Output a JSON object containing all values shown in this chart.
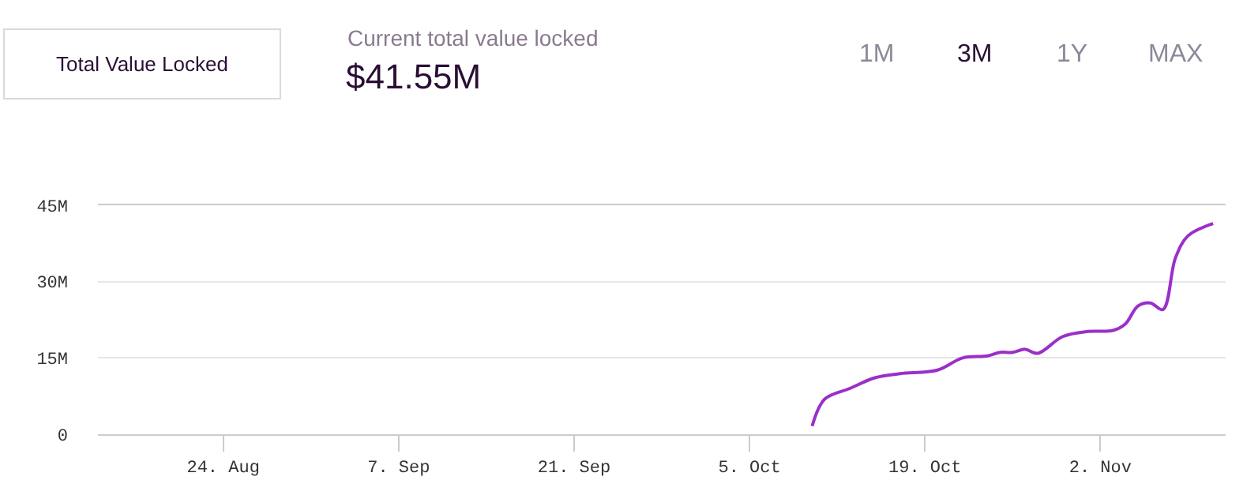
{
  "chart_data": {
    "type": "line",
    "title": "$41.55M",
    "subtitle": "Current total value locked",
    "annotations": [
      "Total Value Locked",
      "1M",
      "3M",
      "1Y",
      "MAX"
    ],
    "x": [
      "--10-10",
      "--10-11",
      "--10-13",
      "--10-15",
      "--10-17",
      "--10-20",
      "--10-22",
      "--10-24",
      "--10-25",
      "--10-26",
      "--10-27",
      "--10-28",
      "--10-30",
      "--11-01",
      "--11-03",
      "--11-04",
      "--11-05",
      "--11-06",
      "--11-07",
      "--11-08",
      "--11-09",
      "--11-11"
    ],
    "series": [
      {
        "color": "#9b2fc9",
        "values": [
          1.6,
          6.9,
          9.0,
          11.1,
          11.9,
          12.6,
          15.0,
          15.4,
          16.1,
          16.1,
          16.7,
          15.9,
          19.2,
          20.2,
          20.4,
          21.7,
          25.2,
          25.8,
          24.5,
          34.7,
          39.0,
          41.4
        ]
      }
    ],
    "xlim": [
      "--08-14",
      "--11-12"
    ],
    "xticks": [
      {
        "value": "--08-24",
        "label": "24. Aug"
      },
      {
        "value": "--09-07",
        "label": "7. Sep"
      },
      {
        "value": "--09-21",
        "label": "21. Sep"
      },
      {
        "value": "--10-05",
        "label": "5. Oct"
      },
      {
        "value": "--10-19",
        "label": "19. Oct"
      },
      {
        "value": "--11-02",
        "label": "2. Nov"
      }
    ],
    "ylim": [
      0,
      45
    ],
    "yticks": [
      0,
      {
        "value": 15,
        "label": "15M"
      },
      {
        "value": 30,
        "label": "30M"
      },
      {
        "value": 45,
        "label": "45M"
      }
    ],
    "grid": "y",
    "marker": "none",
    "line_style": "solid"
  }
}
